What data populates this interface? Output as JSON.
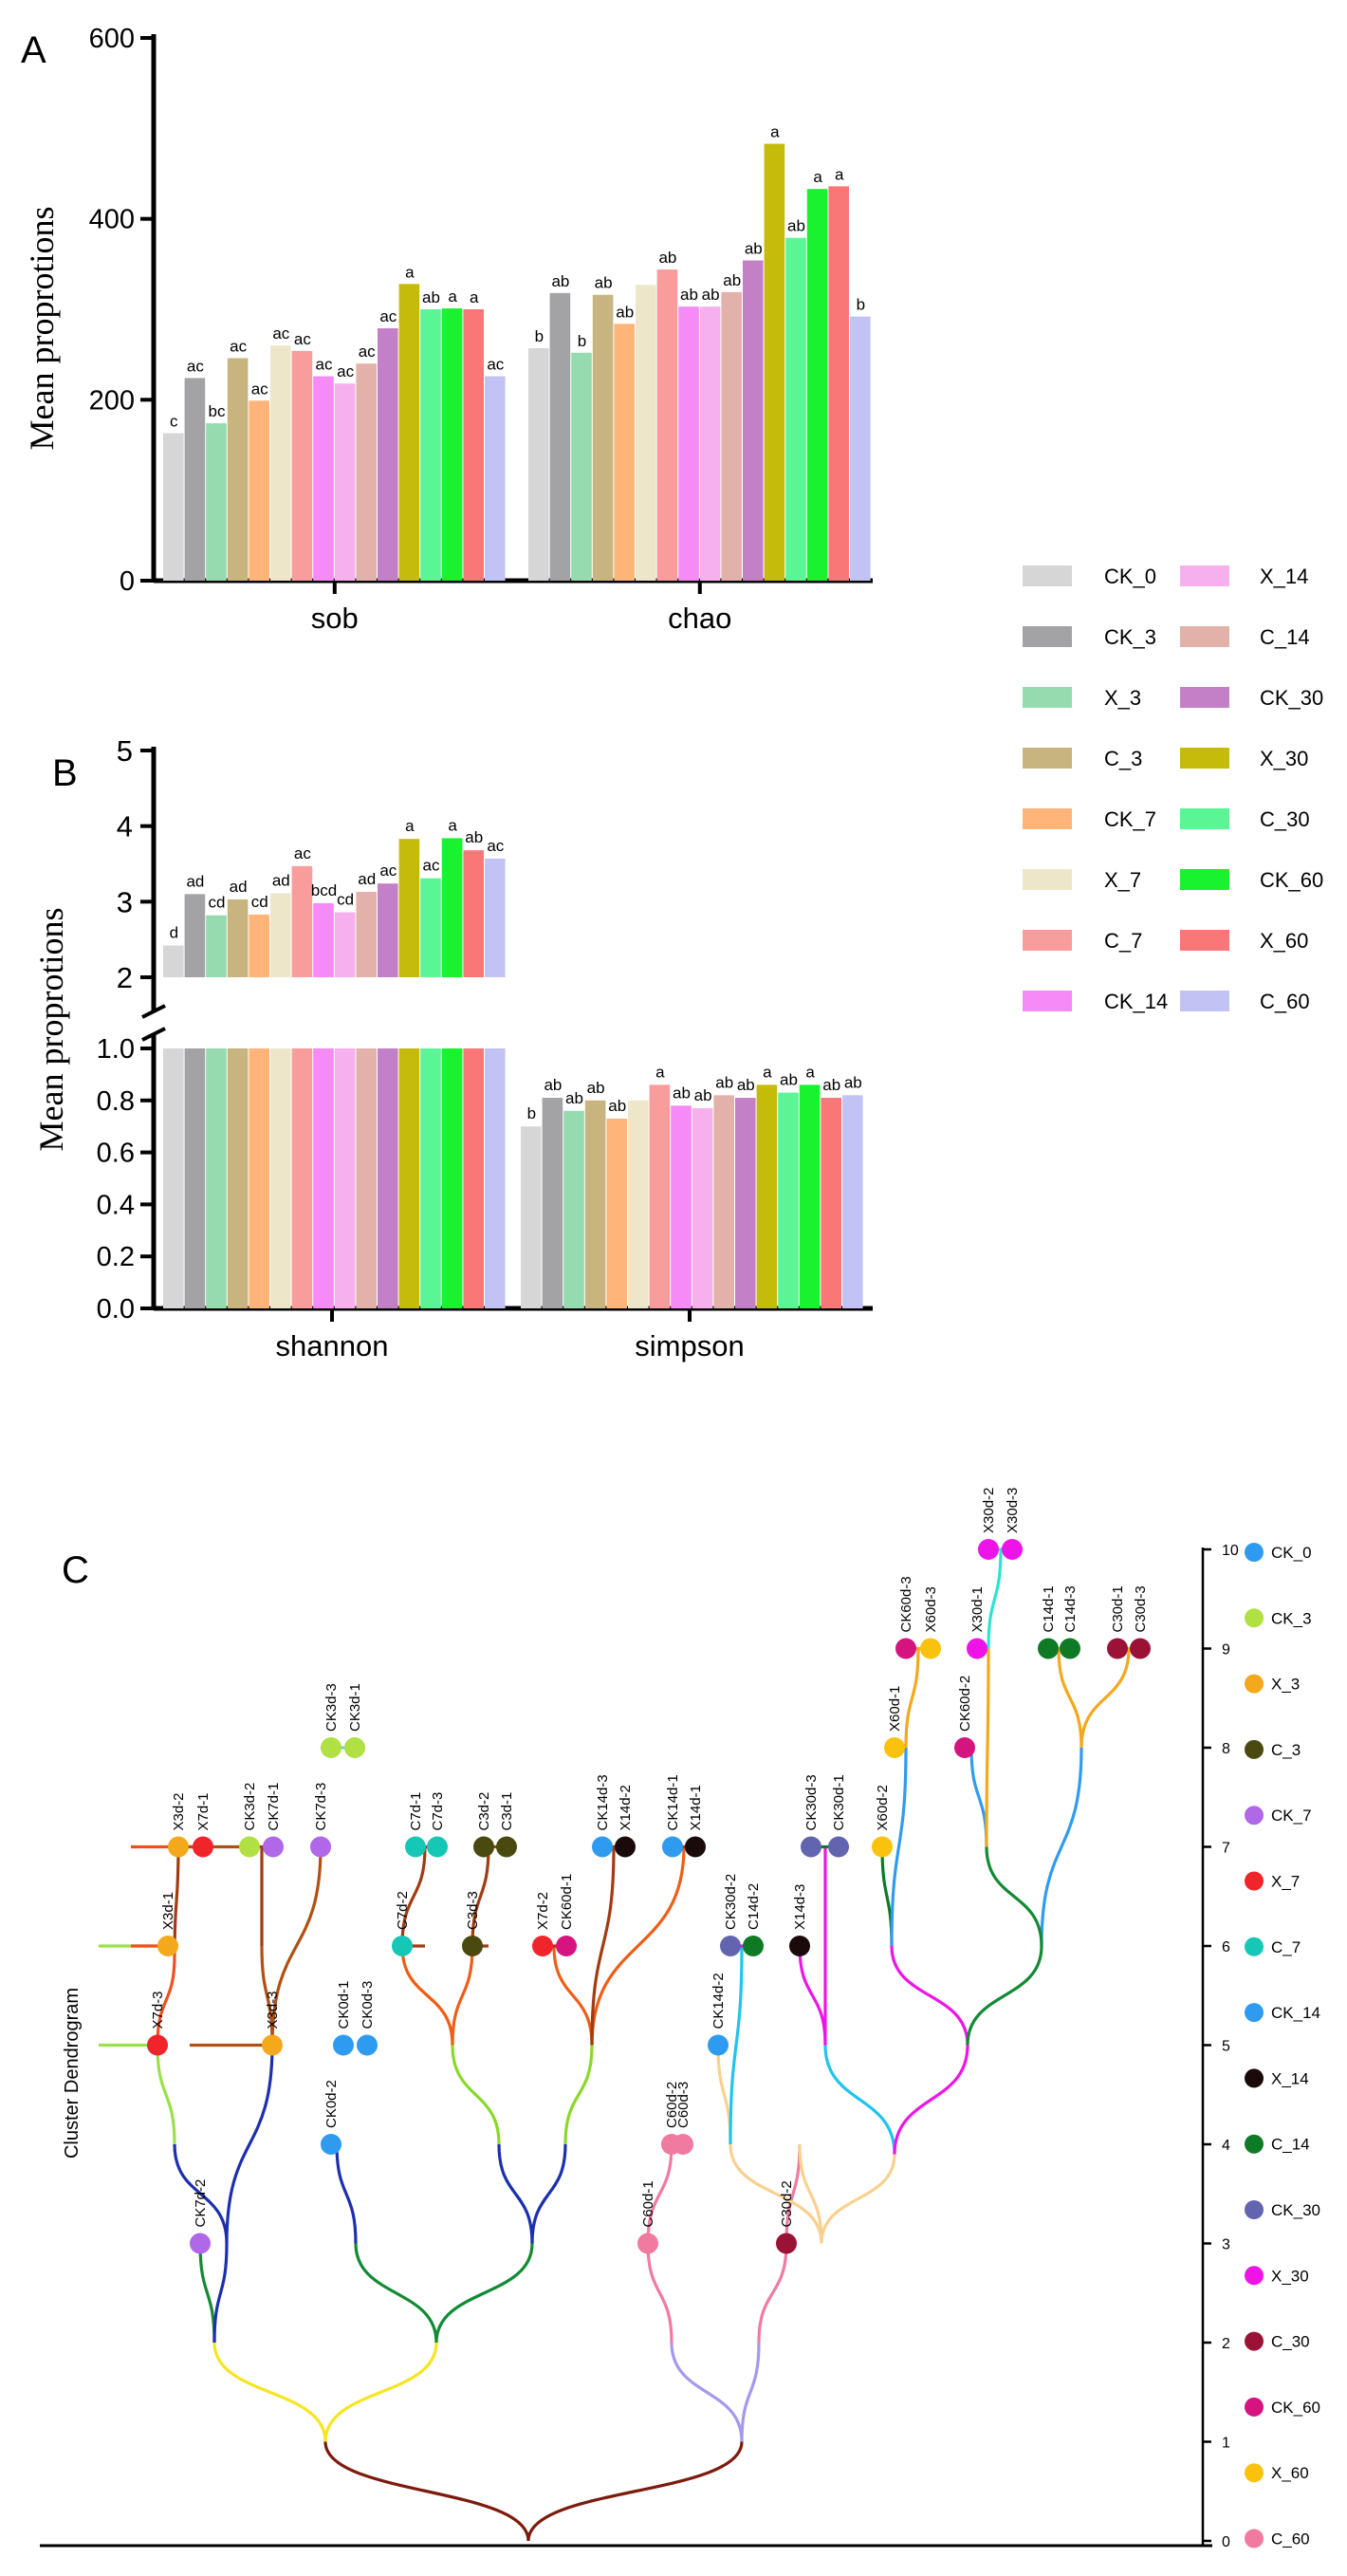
{
  "panels": {
    "a": "A",
    "b": "B",
    "c": "C"
  },
  "groups": [
    {
      "name": "CK_0",
      "color": "#d6d6d6"
    },
    {
      "name": "CK_3",
      "color": "#a3a3a6"
    },
    {
      "name": "X_3",
      "color": "#96dbb0"
    },
    {
      "name": "C_3",
      "color": "#c8b47e"
    },
    {
      "name": "CK_7",
      "color": "#ffb57a"
    },
    {
      "name": "X_7",
      "color": "#eee6c8"
    },
    {
      "name": "C_7",
      "color": "#f99c9c"
    },
    {
      "name": "CK_14",
      "color": "#f68bf7"
    },
    {
      "name": "X_14",
      "color": "#f7b0ee"
    },
    {
      "name": "C_14",
      "color": "#e2b2aa"
    },
    {
      "name": "CK_30",
      "color": "#c380c7"
    },
    {
      "name": "X_30",
      "color": "#c4bb0a"
    },
    {
      "name": "C_30",
      "color": "#5cf595"
    },
    {
      "name": "CK_60",
      "color": "#18f22f"
    },
    {
      "name": "X_60",
      "color": "#fa7777"
    },
    {
      "name": "C_60",
      "color": "#c2c2f5"
    }
  ],
  "chart_data": [
    {
      "type": "bar",
      "panel": "A",
      "ylabel": "Mean proprotions",
      "ylim": [
        0,
        600
      ],
      "yticks": [
        "0",
        "200",
        "400",
        "600"
      ],
      "categories": [
        "sob",
        "chao"
      ],
      "series": [
        {
          "name": "CK_0",
          "values": [
            163,
            257
          ],
          "labels": [
            "c",
            "b"
          ]
        },
        {
          "name": "CK_3",
          "values": [
            224,
            318
          ],
          "labels": [
            "ac",
            "ab"
          ]
        },
        {
          "name": "X_3",
          "values": [
            174,
            252
          ],
          "labels": [
            "bc",
            "b"
          ]
        },
        {
          "name": "C_3",
          "values": [
            246,
            316
          ],
          "labels": [
            "ac",
            "ab"
          ]
        },
        {
          "name": "CK_7",
          "values": [
            199,
            284
          ],
          "labels": [
            "ac",
            "ab"
          ]
        },
        {
          "name": "X_7",
          "values": [
            260,
            327
          ],
          "labels": [
            "ac",
            ""
          ]
        },
        {
          "name": "C_7",
          "values": [
            254,
            344
          ],
          "labels": [
            "ac",
            "ab"
          ]
        },
        {
          "name": "CK_14",
          "values": [
            226,
            303
          ],
          "labels": [
            "ac",
            "ab"
          ]
        },
        {
          "name": "X_14",
          "values": [
            218,
            303
          ],
          "labels": [
            "ac",
            "ab"
          ]
        },
        {
          "name": "C_14",
          "values": [
            240,
            319
          ],
          "labels": [
            "ac",
            "ab"
          ]
        },
        {
          "name": "CK_30",
          "values": [
            279,
            354
          ],
          "labels": [
            "ac",
            "ab"
          ]
        },
        {
          "name": "X_30",
          "values": [
            328,
            483
          ],
          "labels": [
            "a",
            "a"
          ]
        },
        {
          "name": "C_30",
          "values": [
            300,
            379
          ],
          "labels": [
            "ab",
            "ab"
          ]
        },
        {
          "name": "CK_60",
          "values": [
            301,
            433
          ],
          "labels": [
            "a",
            "a"
          ]
        },
        {
          "name": "X_60",
          "values": [
            300,
            436
          ],
          "labels": [
            "a",
            "a"
          ]
        },
        {
          "name": "C_60",
          "values": [
            226,
            292
          ],
          "labels": [
            "ac",
            "b"
          ]
        }
      ]
    },
    {
      "type": "bar",
      "panel": "B",
      "ylabel": "Mean proprotions",
      "ylim_lower": [
        0,
        1
      ],
      "ylim_upper": [
        2,
        5
      ],
      "axis_break": true,
      "yticks_lower": [
        "0.0",
        "0.2",
        "0.4",
        "0.6",
        "0.8",
        "1.0"
      ],
      "yticks_upper": [
        "2",
        "3",
        "4",
        "5"
      ],
      "categories": [
        "shannon",
        "simpson"
      ],
      "series": [
        {
          "name": "CK_0",
          "values": [
            2.42,
            0.7
          ],
          "labels": [
            "d",
            "b"
          ]
        },
        {
          "name": "CK_3",
          "values": [
            3.1,
            0.81
          ],
          "labels": [
            "ad",
            "ab"
          ]
        },
        {
          "name": "X_3",
          "values": [
            2.82,
            0.76
          ],
          "labels": [
            "cd",
            "ab"
          ]
        },
        {
          "name": "C_3",
          "values": [
            3.03,
            0.8
          ],
          "labels": [
            "ad",
            "ab"
          ]
        },
        {
          "name": "CK_7",
          "values": [
            2.83,
            0.73
          ],
          "labels": [
            "cd",
            "ab"
          ]
        },
        {
          "name": "X_7",
          "values": [
            3.11,
            0.8
          ],
          "labels": [
            "ad",
            ""
          ]
        },
        {
          "name": "C_7",
          "values": [
            3.47,
            0.86
          ],
          "labels": [
            "ac",
            "a"
          ]
        },
        {
          "name": "CK_14",
          "values": [
            2.98,
            0.78
          ],
          "labels": [
            "bcd",
            "ab"
          ]
        },
        {
          "name": "X_14",
          "values": [
            2.86,
            0.77
          ],
          "labels": [
            "cd",
            "ab"
          ]
        },
        {
          "name": "C_14",
          "values": [
            3.13,
            0.82
          ],
          "labels": [
            "ad",
            "ab"
          ]
        },
        {
          "name": "CK_30",
          "values": [
            3.24,
            0.81
          ],
          "labels": [
            "ac",
            "ab"
          ]
        },
        {
          "name": "X_30",
          "values": [
            3.83,
            0.86
          ],
          "labels": [
            "a",
            "a"
          ]
        },
        {
          "name": "C_30",
          "values": [
            3.31,
            0.83
          ],
          "labels": [
            "ac",
            "ab"
          ]
        },
        {
          "name": "CK_60",
          "values": [
            3.84,
            0.86
          ],
          "labels": [
            "a",
            "a"
          ]
        },
        {
          "name": "X_60",
          "values": [
            3.68,
            0.81
          ],
          "labels": [
            "ab",
            "ab"
          ]
        },
        {
          "name": "C_60",
          "values": [
            3.57,
            0.82
          ],
          "labels": [
            "ac",
            "ab"
          ]
        }
      ]
    },
    {
      "type": "dendrogram",
      "panel": "C",
      "ylabel": "Cluster Dendrogram",
      "ylim": [
        0,
        10
      ],
      "yticks": [
        "0",
        "1",
        "2",
        "3",
        "4",
        "5",
        "6",
        "7",
        "8",
        "9",
        "10"
      ],
      "leaves": [
        {
          "label": "X7d-3",
          "group": "X_7"
        },
        {
          "label": "X3d-1",
          "group": "X_3"
        },
        {
          "label": "X3d-2",
          "group": "X_3"
        },
        {
          "label": "X7d-1",
          "group": "X_7"
        },
        {
          "label": "CK7d-2",
          "group": "CK_7"
        },
        {
          "label": "X3d-3",
          "group": "X_3"
        },
        {
          "label": "CK3d-2",
          "group": "CK_3"
        },
        {
          "label": "CK7d-1",
          "group": "CK_7"
        },
        {
          "label": "CK7d-3",
          "group": "CK_7"
        },
        {
          "label": "CK3d-3",
          "group": "CK_3"
        },
        {
          "label": "CK3d-1",
          "group": "CK_3"
        },
        {
          "label": "CK0d-2",
          "group": "CK_0"
        },
        {
          "label": "CK0d-1",
          "group": "CK_0"
        },
        {
          "label": "CK0d-3",
          "group": "CK_0"
        },
        {
          "label": "C7d-2",
          "group": "C_7"
        },
        {
          "label": "C7d-1",
          "group": "C_7"
        },
        {
          "label": "C7d-3",
          "group": "C_7"
        },
        {
          "label": "C3d-3",
          "group": "C_3"
        },
        {
          "label": "C3d-2",
          "group": "C_3"
        },
        {
          "label": "C3d-1",
          "group": "C_3"
        },
        {
          "label": "X7d-2",
          "group": "X_7"
        },
        {
          "label": "CK60d-1",
          "group": "CK_60"
        },
        {
          "label": "CK14d-3",
          "group": "CK_14"
        },
        {
          "label": "X14d-2",
          "group": "X_14"
        },
        {
          "label": "CK14d-1",
          "group": "CK_14"
        },
        {
          "label": "X14d-1",
          "group": "X_14"
        },
        {
          "label": "C60d-1",
          "group": "C_60"
        },
        {
          "label": "C60d-2",
          "group": "C_60"
        },
        {
          "label": "C60d-3",
          "group": "C_60"
        },
        {
          "label": "CK14d-2",
          "group": "CK_14"
        },
        {
          "label": "CK30d-2",
          "group": "CK_30"
        },
        {
          "label": "C14d-2",
          "group": "C_14"
        },
        {
          "label": "C30d-2",
          "group": "C_30"
        },
        {
          "label": "X14d-3",
          "group": "X_14"
        },
        {
          "label": "CK30d-3",
          "group": "CK_30"
        },
        {
          "label": "CK30d-1",
          "group": "CK_30"
        },
        {
          "label": "X60d-2",
          "group": "X_60"
        },
        {
          "label": "X60d-1",
          "group": "X_60"
        },
        {
          "label": "CK60d-3",
          "group": "CK_60"
        },
        {
          "label": "X60d-3",
          "group": "X_60"
        },
        {
          "label": "CK60d-2",
          "group": "CK_60"
        },
        {
          "label": "X30d-1",
          "group": "X_30"
        },
        {
          "label": "X30d-2",
          "group": "X_30"
        },
        {
          "label": "X30d-3",
          "group": "X_30"
        },
        {
          "label": "C14d-1",
          "group": "C_14"
        },
        {
          "label": "C14d-3",
          "group": "C_14"
        },
        {
          "label": "C30d-1",
          "group": "C_30"
        },
        {
          "label": "C30d-3",
          "group": "C_30"
        }
      ],
      "legend": [
        {
          "name": "CK_0",
          "color": "#2f9bf0"
        },
        {
          "name": "CK_3",
          "color": "#b0e042"
        },
        {
          "name": "X_3",
          "color": "#f4a81c"
        },
        {
          "name": "C_3",
          "color": "#4a4a10"
        },
        {
          "name": "CK_7",
          "color": "#b067e8"
        },
        {
          "name": "X_7",
          "color": "#f0242b"
        },
        {
          "name": "C_7",
          "color": "#16c7b5"
        },
        {
          "name": "CK_14",
          "color": "#2f9bf0"
        },
        {
          "name": "X_14",
          "color": "#1a0a0a"
        },
        {
          "name": "C_14",
          "color": "#0e7a25"
        },
        {
          "name": "CK_30",
          "color": "#6264b0"
        },
        {
          "name": "X_30",
          "color": "#ee14e8"
        },
        {
          "name": "C_30",
          "color": "#9a1337"
        },
        {
          "name": "CK_60",
          "color": "#d5147f"
        },
        {
          "name": "X_60",
          "color": "#fac20c"
        },
        {
          "name": "C_60",
          "color": "#f07aa0"
        }
      ]
    }
  ]
}
